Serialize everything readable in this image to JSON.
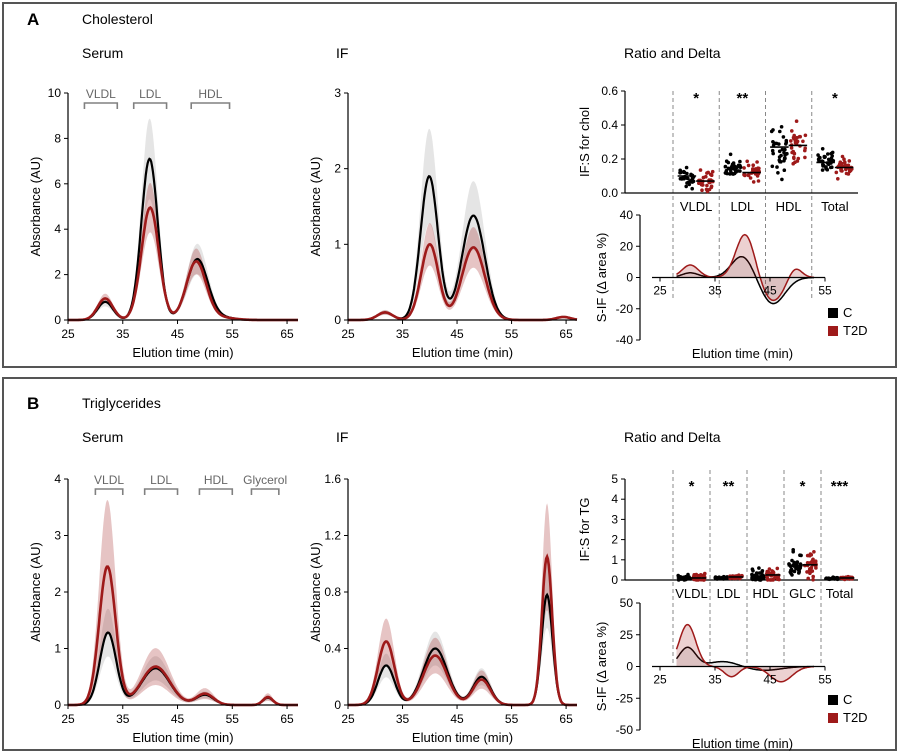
{
  "colors": {
    "control": "#000000",
    "t2d": "#9e1a1a",
    "bracket": "#808080",
    "panel_border": "#555555",
    "dashed": "#888888"
  },
  "chart_data": [
    {
      "panel": "A",
      "panel_title": "Cholesterol",
      "legend": [
        {
          "label": "C",
          "color": "#000000"
        },
        {
          "label": "T2D",
          "color": "#9e1a1a"
        }
      ],
      "charts": [
        {
          "title": "Serum",
          "type": "line",
          "xlabel": "Elution time (min)",
          "ylabel": "Absorbance (AU)",
          "xlim": [
            25,
            67
          ],
          "ylim": [
            0,
            10
          ],
          "xticks": [
            25,
            35,
            45,
            55,
            65
          ],
          "yticks": [
            0,
            2,
            4,
            6,
            8,
            10
          ],
          "brackets": [
            {
              "label": "VLDL",
              "from": 28,
              "to": 34
            },
            {
              "label": "LDL",
              "from": 37,
              "to": 43
            },
            {
              "label": "HDL",
              "from": 47.5,
              "to": 54.5
            }
          ],
          "series": [
            {
              "name": "C",
              "color": "#000000",
              "peaks": [
                {
                  "c": 31.8,
                  "h": 0.8,
                  "w": 1.4
                },
                {
                  "c": 39.9,
                  "h": 7.1,
                  "w": 1.5
                },
                {
                  "c": 48.6,
                  "h": 2.65,
                  "w": 1.9
                },
                {
                  "c": 52.5,
                  "h": 0.12,
                  "w": 2.5
                }
              ],
              "band": 0.25
            },
            {
              "name": "T2D",
              "color": "#9e1a1a",
              "peaks": [
                {
                  "c": 31.8,
                  "h": 0.95,
                  "w": 1.4
                },
                {
                  "c": 40.0,
                  "h": 4.95,
                  "w": 1.6
                },
                {
                  "c": 48.4,
                  "h": 2.55,
                  "w": 1.8
                },
                {
                  "c": 52.5,
                  "h": 0.12,
                  "w": 2.5
                }
              ],
              "band": 0.22
            }
          ]
        },
        {
          "title": "IF",
          "type": "line",
          "xlabel": "Elution time (min)",
          "ylabel": "Absorbance (AU)",
          "xlim": [
            25,
            67
          ],
          "ylim": [
            0,
            3
          ],
          "xticks": [
            25,
            35,
            45,
            55,
            65
          ],
          "yticks": [
            0,
            1,
            2,
            3
          ],
          "series": [
            {
              "name": "C",
              "color": "#000000",
              "peaks": [
                {
                  "c": 31.8,
                  "h": 0.1,
                  "w": 1.4
                },
                {
                  "c": 39.9,
                  "h": 1.9,
                  "w": 1.6
                },
                {
                  "c": 48.0,
                  "h": 1.38,
                  "w": 2.1
                },
                {
                  "c": 64.5,
                  "h": 0.04,
                  "w": 1.3
                }
              ],
              "band": 0.33
            },
            {
              "name": "T2D",
              "color": "#9e1a1a",
              "peaks": [
                {
                  "c": 31.8,
                  "h": 0.1,
                  "w": 1.4
                },
                {
                  "c": 40.0,
                  "h": 1.0,
                  "w": 1.6
                },
                {
                  "c": 48.0,
                  "h": 0.96,
                  "w": 2.1
                },
                {
                  "c": 64.5,
                  "h": 0.04,
                  "w": 1.3
                }
              ],
              "band": 0.28
            }
          ]
        },
        {
          "title": "Ratio and Delta",
          "type": "scatter",
          "ylabel": "IF:S for chol",
          "ylim": [
            0,
            0.6
          ],
          "yticks": [
            0.0,
            0.2,
            0.4,
            0.6
          ],
          "categories": [
            "VLDL",
            "LDL",
            "HDL",
            "Total"
          ],
          "significance": [
            "*",
            "**",
            "",
            "*"
          ],
          "series": [
            {
              "name": "C",
              "color": "#000000",
              "medians": [
                0.1,
                0.15,
                0.27,
                0.18
              ],
              "spread": [
                0.06,
                0.05,
                0.12,
                0.05
              ]
            },
            {
              "name": "T2D",
              "color": "#9e1a1a",
              "medians": [
                0.07,
                0.12,
                0.28,
                0.15
              ],
              "spread": [
                0.05,
                0.05,
                0.12,
                0.05
              ]
            }
          ]
        },
        {
          "type": "area",
          "xlabel": "Elution time (min)",
          "ylabel": "S-IF (Δ area %)",
          "xlim": [
            25,
            55
          ],
          "ylim": [
            -40,
            40
          ],
          "xticks": [
            25,
            35,
            45,
            55
          ],
          "yticks": [
            -40,
            -20,
            0,
            20,
            40
          ],
          "series": [
            {
              "name": "C",
              "color": "#000000",
              "peaks": [
                {
                  "c": 30.5,
                  "h": 3,
                  "w": 1.5
                },
                {
                  "c": 40,
                  "h": 14,
                  "w": 2
                },
                {
                  "c": 45.5,
                  "h": -17,
                  "w": 2.2
                }
              ]
            },
            {
              "name": "T2D",
              "color": "#9e1a1a",
              "peaks": [
                {
                  "c": 30.5,
                  "h": 8,
                  "w": 1.5
                },
                {
                  "c": 40.5,
                  "h": 28,
                  "w": 1.7
                },
                {
                  "c": 45.5,
                  "h": -15,
                  "w": 2
                },
                {
                  "c": 49.5,
                  "h": 7,
                  "w": 1.2
                }
              ]
            }
          ]
        }
      ]
    },
    {
      "panel": "B",
      "panel_title": "Triglycerides",
      "legend": [
        {
          "label": "C",
          "color": "#000000"
        },
        {
          "label": "T2D",
          "color": "#9e1a1a"
        }
      ],
      "charts": [
        {
          "title": "Serum",
          "type": "line",
          "xlabel": "Elution time (min)",
          "ylabel": "Absorbance (AU)",
          "xlim": [
            25,
            67
          ],
          "ylim": [
            0,
            4
          ],
          "xticks": [
            25,
            35,
            45,
            55,
            65
          ],
          "yticks": [
            0,
            1,
            2,
            3,
            4
          ],
          "brackets": [
            {
              "label": "VLDL",
              "from": 30,
              "to": 35
            },
            {
              "label": "LDL",
              "from": 39,
              "to": 45
            },
            {
              "label": "HDL",
              "from": 49,
              "to": 55
            },
            {
              "label": "Glycerol",
              "from": 58.5,
              "to": 63.5
            }
          ],
          "series": [
            {
              "name": "C",
              "color": "#000000",
              "peaks": [
                {
                  "c": 32.3,
                  "h": 1.28,
                  "w": 1.5
                },
                {
                  "c": 41.0,
                  "h": 0.65,
                  "w": 2.6
                },
                {
                  "c": 50.0,
                  "h": 0.18,
                  "w": 1.6
                },
                {
                  "c": 61.5,
                  "h": 0.13,
                  "w": 0.9
                }
              ],
              "band": 0.33
            },
            {
              "name": "T2D",
              "color": "#9e1a1a",
              "peaks": [
                {
                  "c": 32.2,
                  "h": 2.45,
                  "w": 1.5
                },
                {
                  "c": 41.0,
                  "h": 0.68,
                  "w": 2.6
                },
                {
                  "c": 50.0,
                  "h": 0.2,
                  "w": 1.6
                },
                {
                  "c": 61.5,
                  "h": 0.14,
                  "w": 0.9
                }
              ],
              "band": 0.48
            }
          ]
        },
        {
          "title": "IF",
          "type": "line",
          "xlabel": "Elution time (min)",
          "ylabel": "Absorbance (AU)",
          "xlim": [
            25,
            67
          ],
          "ylim": [
            0,
            1.6
          ],
          "xticks": [
            25,
            35,
            45,
            55,
            65
          ],
          "yticks": [
            0,
            0.4,
            0.8,
            1.2,
            1.6
          ],
          "series": [
            {
              "name": "C",
              "color": "#000000",
              "peaks": [
                {
                  "c": 32.0,
                  "h": 0.28,
                  "w": 1.5
                },
                {
                  "c": 41.0,
                  "h": 0.4,
                  "w": 2.2
                },
                {
                  "c": 49.5,
                  "h": 0.2,
                  "w": 1.6
                },
                {
                  "c": 61.5,
                  "h": 0.78,
                  "w": 1.0
                }
              ],
              "band": 0.3
            },
            {
              "name": "T2D",
              "color": "#9e1a1a",
              "peaks": [
                {
                  "c": 32.0,
                  "h": 0.45,
                  "w": 1.5
                },
                {
                  "c": 41.0,
                  "h": 0.35,
                  "w": 2.2
                },
                {
                  "c": 49.5,
                  "h": 0.18,
                  "w": 1.6
                },
                {
                  "c": 61.5,
                  "h": 1.05,
                  "w": 0.95
                }
              ],
              "band": 0.36
            }
          ]
        },
        {
          "title": "Ratio and Delta",
          "type": "scatter",
          "ylabel": "IF:S for TG",
          "ylim": [
            0,
            5
          ],
          "yticks": [
            0,
            1,
            2,
            3,
            4,
            5
          ],
          "categories": [
            "VLDL",
            "LDL",
            "HDL",
            "GLC",
            "Total"
          ],
          "significance": [
            "*",
            "**",
            "",
            "*",
            "***"
          ],
          "series": [
            {
              "name": "C",
              "color": "#000000",
              "medians": [
                0.1,
                0.1,
                0.2,
                0.7,
                0.08
              ],
              "spread": [
                0.1,
                0.06,
                0.3,
                0.6,
                0.04
              ]
            },
            {
              "name": "T2D",
              "color": "#9e1a1a",
              "medians": [
                0.1,
                0.15,
                0.25,
                0.75,
                0.1
              ],
              "spread": [
                0.15,
                0.08,
                0.35,
                0.8,
                0.05
              ]
            }
          ]
        },
        {
          "type": "area",
          "xlabel": "Elution time (min)",
          "ylabel": "S-IF (Δ area %)",
          "xlim": [
            25,
            55
          ],
          "ylim": [
            -50,
            50
          ],
          "xticks": [
            25,
            35,
            45,
            55
          ],
          "yticks": [
            -50,
            -25,
            0,
            25,
            50
          ],
          "series": [
            {
              "name": "C",
              "color": "#000000",
              "peaks": [
                {
                  "c": 30,
                  "h": 15,
                  "w": 1.5
                },
                {
                  "c": 36.5,
                  "h": 4,
                  "w": 2.5
                },
                {
                  "c": 44,
                  "h": -3,
                  "w": 3
                }
              ]
            },
            {
              "name": "T2D",
              "color": "#9e1a1a",
              "peaks": [
                {
                  "c": 30,
                  "h": 33,
                  "w": 1.5
                },
                {
                  "c": 38,
                  "h": -8,
                  "w": 1.3
                },
                {
                  "c": 47,
                  "h": -12,
                  "w": 2
                }
              ]
            }
          ]
        }
      ]
    }
  ]
}
